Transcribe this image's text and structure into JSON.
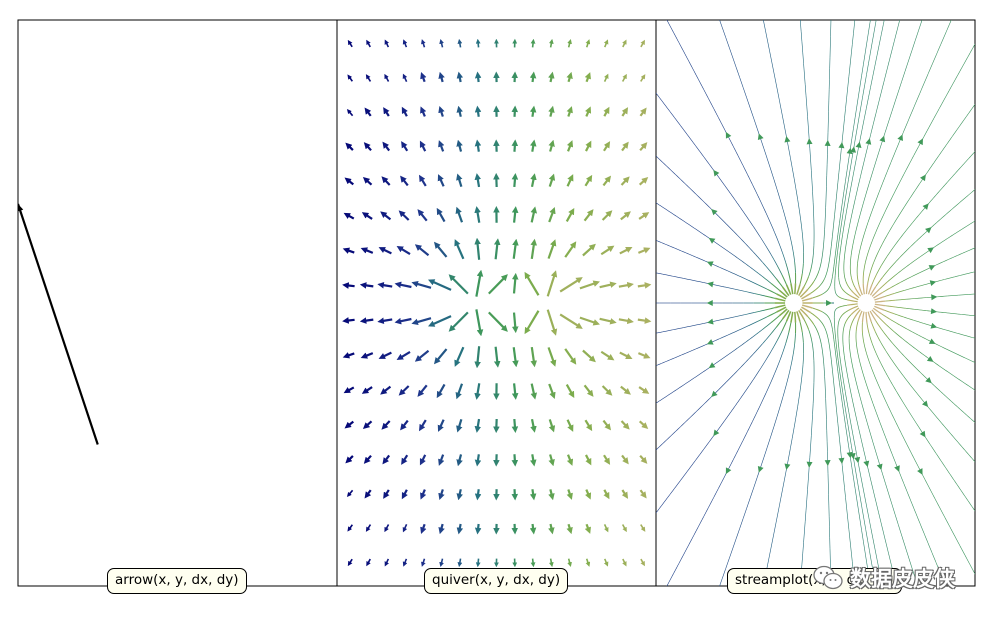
{
  "chart_data": [
    {
      "type": "arrow",
      "call": "arrow(x, y, dx, dy)",
      "arrow": {
        "x": 0,
        "y": 0,
        "dx": -0.5,
        "dy": 0.85
      },
      "xlim": [
        -0.5,
        1.5
      ],
      "ylim": [
        -0.5,
        1.5
      ],
      "color": "#000000",
      "axis_ticks": false
    },
    {
      "type": "quiver",
      "call": "quiver(x, y, dx, dy)",
      "grid": {
        "nx": 17,
        "ny": 16
      },
      "colormap": "gist_earth",
      "axis_ticks": false
    },
    {
      "type": "streamplot",
      "call": "streamplot(x, y, dx, dy)",
      "colormap": "gist_earth",
      "axis_ticks": false
    }
  ],
  "watermark": {
    "text": "数据皮皮侠",
    "icon": "wechat-icon"
  }
}
